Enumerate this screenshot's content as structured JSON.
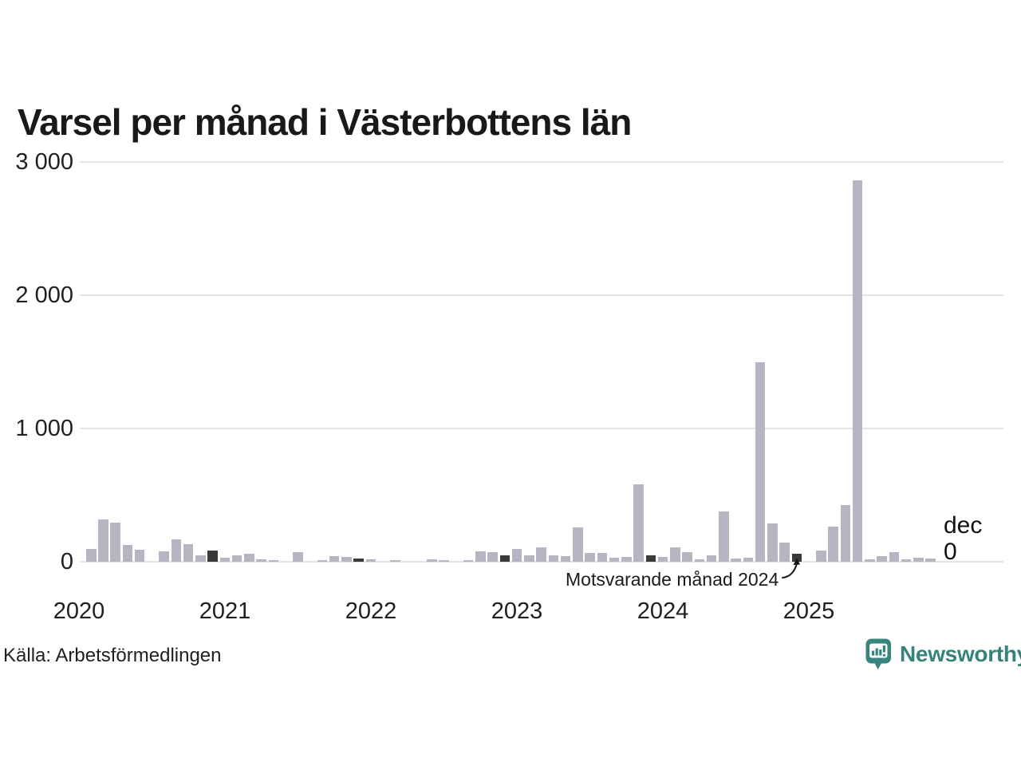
{
  "title": "Varsel per månad i Västerbottens län",
  "source": "Källa: Arbetsförmedlingen",
  "brand": {
    "name": "Newsworthy",
    "icon": "newsworthy-speech-bubble-chart-icon",
    "color": "#37857f"
  },
  "annotation": {
    "text": "Motsvarande månad 2024",
    "points_to": "bar-2024-dec"
  },
  "latest_label": {
    "month": "dec",
    "value": "0"
  },
  "colors": {
    "bar": "#b8b4c3",
    "bar_highlight": "#3a3a3a",
    "grid": "#e4e3e7",
    "text": "#1a1a1a",
    "brand_teal": "#37857f"
  },
  "chart_data": {
    "type": "bar",
    "title": "Varsel per månad i Västerbottens län",
    "xlabel": "",
    "ylabel": "",
    "ylim": [
      0,
      3000
    ],
    "grid": "horizontal",
    "legend": "none",
    "x_tick_labels": [
      "2020",
      "2021",
      "2022",
      "2023",
      "2024",
      "2025"
    ],
    "y_ticks": [
      0,
      1000,
      2000,
      3000
    ],
    "y_tick_labels": [
      "0",
      "1 000",
      "2 000",
      "3 000"
    ],
    "month_keys": [
      "jan",
      "feb",
      "mar",
      "apr",
      "maj",
      "jun",
      "jul",
      "aug",
      "sep",
      "okt",
      "nov",
      "dec"
    ],
    "highlighted_month_each_year": "dec",
    "series": [
      {
        "year": 2020,
        "values": [
          0,
          95,
          315,
          295,
          125,
          90,
          0,
          80,
          165,
          135,
          48,
          82
        ]
      },
      {
        "year": 2021,
        "values": [
          28,
          46,
          62,
          20,
          10,
          0,
          70,
          0,
          12,
          40,
          34,
          24
        ]
      },
      {
        "year": 2022,
        "values": [
          18,
          0,
          15,
          0,
          0,
          16,
          12,
          0,
          12,
          80,
          70,
          50
        ]
      },
      {
        "year": 2023,
        "values": [
          95,
          48,
          110,
          48,
          44,
          260,
          68,
          64,
          30,
          34,
          580,
          48
        ]
      },
      {
        "year": 2024,
        "values": [
          38,
          110,
          70,
          18,
          50,
          380,
          25,
          30,
          1500,
          290,
          145,
          60
        ]
      },
      {
        "year": 2025,
        "values": [
          0,
          85,
          265,
          425,
          2860,
          20,
          44,
          75,
          20,
          30,
          26,
          0
        ]
      }
    ]
  }
}
